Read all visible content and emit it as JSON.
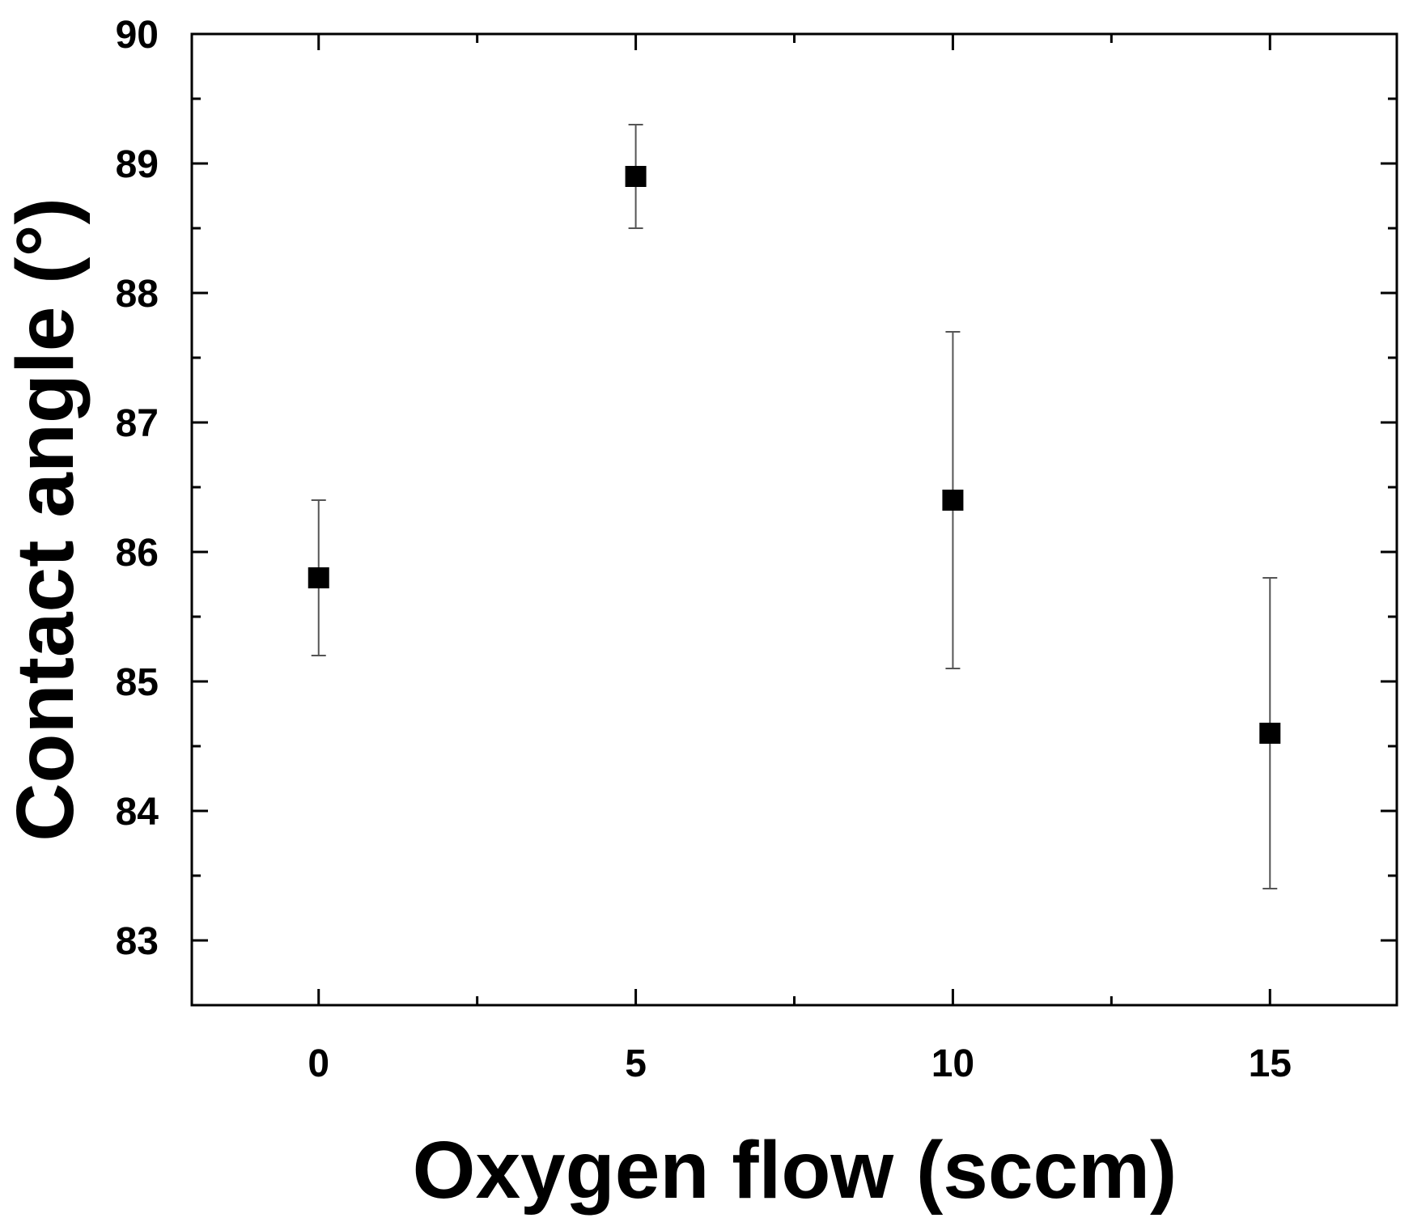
{
  "chart_data": {
    "type": "scatter",
    "title": "",
    "xlabel": "Oxygen flow (sccm)",
    "ylabel": "Contact angle (°)",
    "xlim": [
      -2,
      17
    ],
    "ylim": [
      82.5,
      90
    ],
    "x_ticks": [
      0,
      5,
      10,
      15
    ],
    "y_ticks": [
      83,
      84,
      85,
      86,
      87,
      88,
      89,
      90
    ],
    "x_tick_labels": [
      "0",
      "5",
      "10",
      "15"
    ],
    "y_tick_labels": [
      "83",
      "84",
      "85",
      "86",
      "87",
      "88",
      "89",
      "90"
    ],
    "grid": false,
    "legend": "none",
    "series": [
      {
        "marker": "square",
        "color": "#000000",
        "x": [
          0,
          5,
          10,
          15
        ],
        "y": [
          85.8,
          88.9,
          86.4,
          84.6
        ],
        "y_err_low": [
          85.2,
          88.5,
          85.1,
          83.4
        ],
        "y_err_high": [
          86.4,
          89.3,
          87.7,
          85.8
        ]
      }
    ]
  }
}
